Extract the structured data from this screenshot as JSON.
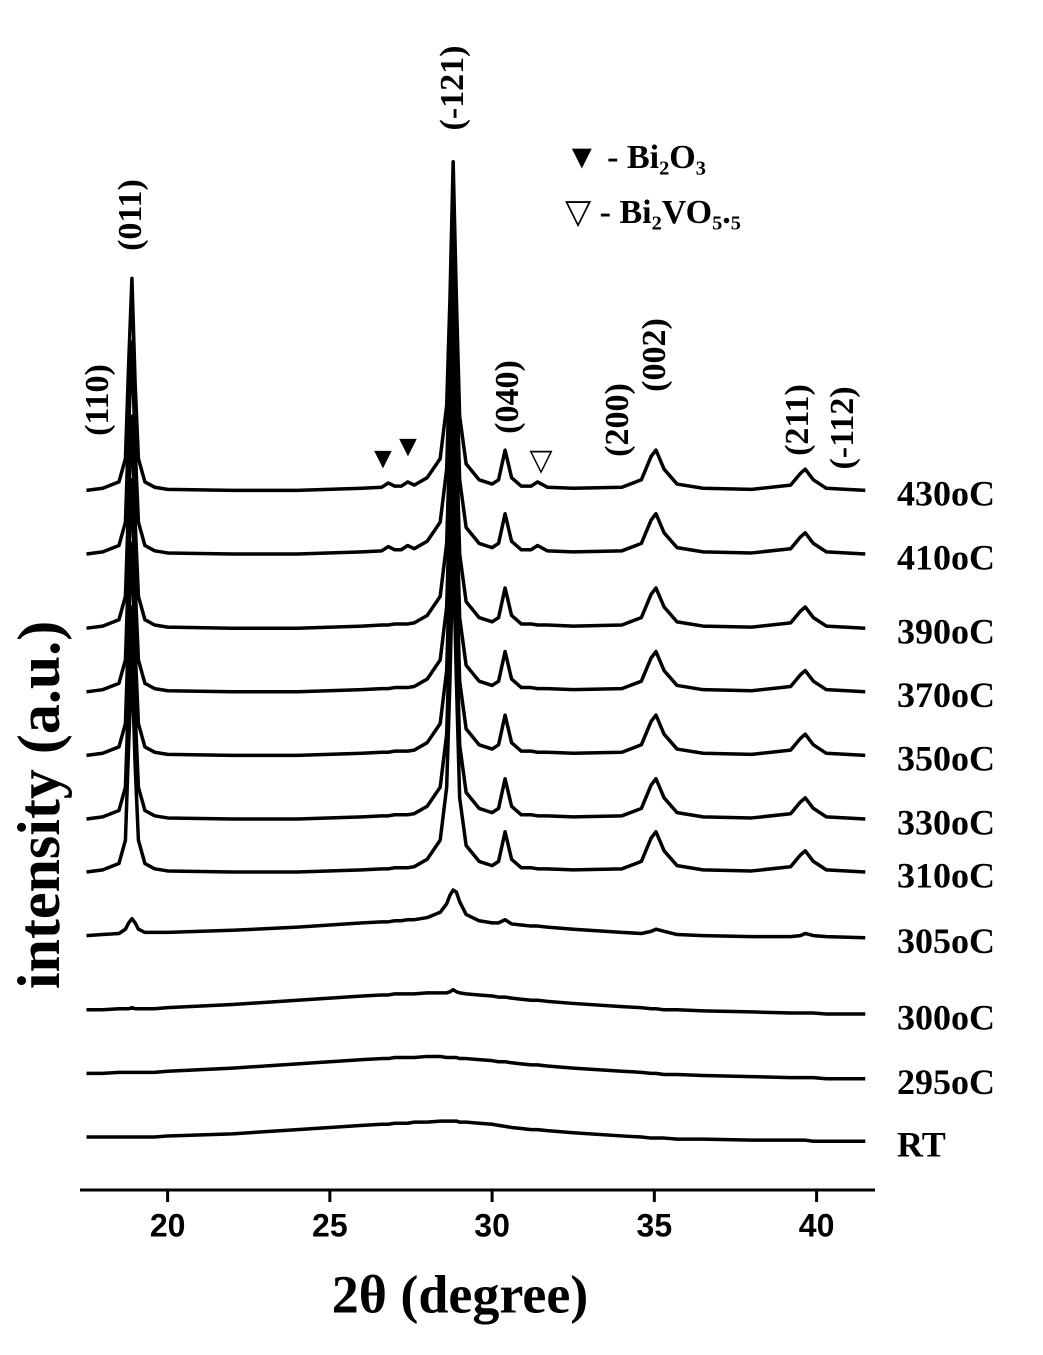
{
  "chart_data": {
    "type": "line",
    "x_label": "2θ (degree)",
    "y_label": "intensity (a.u.)",
    "xlim": [
      17.3,
      41.8
    ],
    "xticks": [
      20,
      25,
      30,
      35,
      40
    ],
    "ylim": [
      0,
      100
    ],
    "peak_labels": [
      "(110)",
      "(011)",
      "(-121)",
      "(040)",
      "(200)",
      "(002)",
      "(211)",
      "(-112)"
    ],
    "phase_markers": [
      "▼",
      "▼",
      "▽"
    ],
    "legend_notes": [
      "▼ - Bi₂O₃",
      "▽ - Bi₂VO₅.₅"
    ],
    "x": [
      17.5,
      18.0,
      18.5,
      18.7,
      18.8,
      18.9,
      19.0,
      19.1,
      19.3,
      19.6,
      20,
      22,
      24,
      26,
      26.6,
      26.8,
      27.0,
      27.2,
      27.4,
      27.6,
      28.0,
      28.4,
      28.6,
      28.7,
      28.8,
      28.9,
      29.0,
      29.2,
      29.6,
      30.0,
      30.2,
      30.4,
      30.6,
      30.9,
      31.2,
      31.4,
      31.7,
      32.5,
      34.0,
      34.6,
      34.9,
      35.05,
      35.3,
      35.7,
      36.5,
      38,
      39.2,
      39.5,
      39.65,
      39.9,
      40.3,
      41.5
    ],
    "series": [
      {
        "name": "430oC",
        "color": "#000000",
        "values": [
          66,
          66.2,
          66.8,
          69,
          78,
          86,
          76,
          69,
          66.8,
          66.3,
          66.1,
          66,
          66,
          66.2,
          66.3,
          66.7,
          66.4,
          66.4,
          66.8,
          66.5,
          67.2,
          69,
          74,
          84,
          97,
          84,
          73,
          68.5,
          67,
          66.6,
          67,
          69.8,
          67.2,
          66.4,
          66.4,
          66.8,
          66.3,
          66.2,
          66.3,
          67,
          69.2,
          69.8,
          68,
          66.6,
          66.2,
          66.1,
          66.5,
          67.6,
          68,
          67,
          66.2,
          66
        ]
      },
      {
        "name": "410oC",
        "color": "#000000",
        "values": [
          60,
          60.2,
          60.8,
          63,
          72,
          80,
          70,
          63,
          60.8,
          60.3,
          60.1,
          60,
          60,
          60.2,
          60.3,
          60.7,
          60.4,
          60.4,
          60.8,
          60.5,
          61.2,
          63,
          68,
          78,
          91,
          78,
          67,
          62.5,
          61,
          60.6,
          61,
          63.8,
          61.2,
          60.4,
          60.4,
          60.8,
          60.3,
          60.2,
          60.3,
          61,
          63.2,
          63.8,
          62,
          60.6,
          60.2,
          60.1,
          60.5,
          61.6,
          62,
          61,
          60.2,
          60
        ]
      },
      {
        "name": "390oC",
        "color": "#000000",
        "values": [
          53,
          53.2,
          53.8,
          56,
          65,
          73,
          63,
          56,
          53.8,
          53.3,
          53.1,
          53,
          53,
          53.2,
          53.3,
          53.3,
          53.4,
          53.4,
          53.4,
          53.5,
          54.2,
          56,
          61,
          71,
          84,
          71,
          60,
          55.5,
          54,
          53.6,
          54,
          56.8,
          54.2,
          53.4,
          53.4,
          53.3,
          53.3,
          53.2,
          53.3,
          54,
          56.2,
          56.8,
          55,
          53.6,
          53.2,
          53.1,
          53.5,
          54.6,
          55,
          54,
          53.2,
          53
        ]
      },
      {
        "name": "370oC",
        "color": "#000000",
        "values": [
          47,
          47.2,
          47.8,
          50,
          59,
          67,
          57,
          50,
          47.8,
          47.3,
          47.1,
          47,
          47,
          47.2,
          47.3,
          47.3,
          47.4,
          47.4,
          47.4,
          47.5,
          48.2,
          50,
          55,
          65,
          78,
          65,
          54,
          49.5,
          48,
          47.6,
          48,
          50.8,
          48.2,
          47.4,
          47.4,
          47.3,
          47.3,
          47.2,
          47.3,
          48,
          50.2,
          50.8,
          49,
          47.6,
          47.2,
          47.1,
          47.5,
          48.6,
          49,
          48,
          47.2,
          47
        ]
      },
      {
        "name": "350oC",
        "color": "#000000",
        "values": [
          41,
          41.2,
          41.8,
          44,
          53,
          61,
          51,
          44,
          41.8,
          41.3,
          41.1,
          41,
          41,
          41.2,
          41.3,
          41.3,
          41.4,
          41.4,
          41.4,
          41.5,
          42.2,
          44,
          49,
          59,
          72,
          59,
          48,
          43.5,
          42,
          41.6,
          42,
          44.8,
          42.2,
          41.4,
          41.4,
          41.3,
          41.3,
          41.2,
          41.3,
          42,
          44.2,
          44.8,
          43,
          41.6,
          41.2,
          41.1,
          41.5,
          42.6,
          43,
          42,
          41.2,
          41
        ]
      },
      {
        "name": "330oC",
        "color": "#000000",
        "values": [
          35,
          35.2,
          35.8,
          38,
          47,
          55,
          45,
          38,
          35.8,
          35.3,
          35.1,
          35,
          35,
          35.2,
          35.3,
          35.3,
          35.4,
          35.4,
          35.4,
          35.5,
          36.2,
          38,
          43,
          53,
          66,
          53,
          42,
          37.5,
          36,
          35.6,
          36,
          38.8,
          36.2,
          35.4,
          35.4,
          35.3,
          35.3,
          35.2,
          35.3,
          36,
          38.2,
          38.8,
          37,
          35.6,
          35.2,
          35.1,
          35.5,
          36.6,
          37,
          36,
          35.2,
          35
        ]
      },
      {
        "name": "310oC",
        "color": "#000000",
        "values": [
          30,
          30.2,
          30.8,
          33,
          42,
          50,
          40,
          33,
          30.8,
          30.3,
          30.1,
          30,
          30,
          30.2,
          30.3,
          30.3,
          30.4,
          30.4,
          30.4,
          30.5,
          31.2,
          33,
          38,
          48,
          61,
          48,
          37,
          32.5,
          31,
          30.6,
          31,
          33.8,
          31.2,
          30.4,
          30.4,
          30.3,
          30.3,
          30.2,
          30.3,
          31,
          33.2,
          33.8,
          32,
          30.6,
          30.2,
          30.1,
          30.5,
          31.6,
          32,
          31,
          30.2,
          30
        ]
      },
      {
        "name": "305oC",
        "color": "#000000",
        "values": [
          24,
          24.1,
          24.2,
          24.6,
          25.2,
          25.6,
          25.2,
          24.6,
          24.3,
          24.3,
          24.3,
          24.5,
          24.8,
          25.2,
          25.3,
          25.3,
          25.4,
          25.4,
          25.5,
          25.5,
          25.7,
          26.2,
          27,
          27.8,
          28.3,
          28.1,
          27.2,
          26,
          25.4,
          25.2,
          25.2,
          25.5,
          25.1,
          25,
          24.9,
          24.9,
          24.8,
          24.6,
          24.3,
          24.2,
          24.4,
          24.6,
          24.4,
          24.1,
          24,
          23.9,
          23.9,
          24,
          24.2,
          24,
          23.9,
          23.8
        ]
      },
      {
        "name": "300oC",
        "color": "#000000",
        "values": [
          17,
          17,
          17.1,
          17.1,
          17.1,
          17.2,
          17.1,
          17.1,
          17.1,
          17.1,
          17.2,
          17.5,
          17.9,
          18.3,
          18.4,
          18.4,
          18.5,
          18.5,
          18.5,
          18.5,
          18.6,
          18.6,
          18.6,
          18.7,
          18.9,
          18.7,
          18.6,
          18.5,
          18.4,
          18.3,
          18.2,
          18.2,
          18.1,
          18,
          17.9,
          17.9,
          17.8,
          17.6,
          17.3,
          17.2,
          17.1,
          17.1,
          17,
          17,
          16.9,
          16.8,
          16.7,
          16.7,
          16.7,
          16.7,
          16.6,
          16.6
        ]
      },
      {
        "name": "295oC",
        "color": "#000000",
        "values": [
          11,
          11,
          11.1,
          11.1,
          11.1,
          11.1,
          11.1,
          11.1,
          11.1,
          11.1,
          11.2,
          11.5,
          11.9,
          12.3,
          12.4,
          12.4,
          12.5,
          12.5,
          12.5,
          12.5,
          12.6,
          12.6,
          12.5,
          12.5,
          12.5,
          12.5,
          12.4,
          12.4,
          12.3,
          12.2,
          12.1,
          12.1,
          12,
          11.9,
          11.8,
          11.8,
          11.7,
          11.5,
          11.2,
          11.1,
          11,
          11,
          10.9,
          10.9,
          10.8,
          10.7,
          10.6,
          10.6,
          10.6,
          10.6,
          10.5,
          10.5
        ]
      },
      {
        "name": "RT",
        "color": "#000000",
        "values": [
          5,
          5,
          5,
          5,
          5,
          5,
          5,
          5,
          5,
          5,
          5.1,
          5.3,
          5.7,
          6.1,
          6.2,
          6.2,
          6.3,
          6.3,
          6.3,
          6.4,
          6.4,
          6.5,
          6.5,
          6.5,
          6.5,
          6.5,
          6.4,
          6.4,
          6.3,
          6.2,
          6.1,
          6,
          5.9,
          5.8,
          5.7,
          5.7,
          5.6,
          5.4,
          5.1,
          5,
          4.9,
          4.9,
          4.9,
          4.8,
          4.8,
          4.7,
          4.7,
          4.7,
          4.7,
          4.6,
          4.6,
          4.6
        ]
      }
    ]
  }
}
